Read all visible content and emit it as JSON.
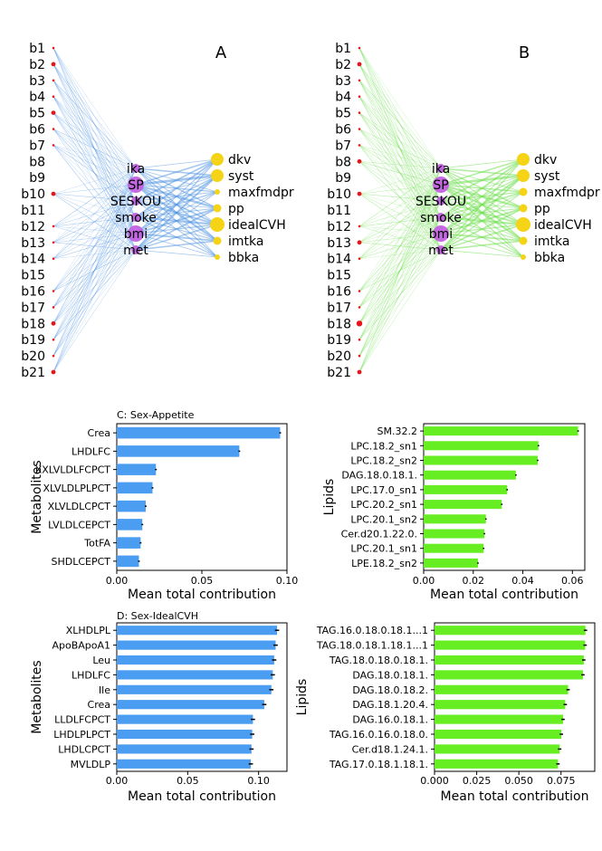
{
  "panels": {
    "A": {
      "letter": "A",
      "edge_color": "#4a90e2",
      "left_nodes": [
        {
          "label": "b1",
          "size": 1
        },
        {
          "label": "b2",
          "size": 2
        },
        {
          "label": "b3",
          "size": 1
        },
        {
          "label": "b4",
          "size": 1
        },
        {
          "label": "b5",
          "size": 2
        },
        {
          "label": "b6",
          "size": 1
        },
        {
          "label": "b7",
          "size": 1
        },
        {
          "label": "b8",
          "size": 0
        },
        {
          "label": "b9",
          "size": 0
        },
        {
          "label": "b10",
          "size": 2
        },
        {
          "label": "b11",
          "size": 0
        },
        {
          "label": "b12",
          "size": 1
        },
        {
          "label": "b13",
          "size": 1
        },
        {
          "label": "b14",
          "size": 1
        },
        {
          "label": "b15",
          "size": 0
        },
        {
          "label": "b16",
          "size": 1
        },
        {
          "label": "b17",
          "size": 1
        },
        {
          "label": "b18",
          "size": 2
        },
        {
          "label": "b19",
          "size": 1
        },
        {
          "label": "b20",
          "size": 1
        },
        {
          "label": "b21",
          "size": 2
        }
      ],
      "mid_nodes": [
        {
          "label": "ika",
          "size": 1
        },
        {
          "label": "SP",
          "size": 3
        },
        {
          "label": "SESKOU",
          "size": 1
        },
        {
          "label": "smoke",
          "size": 1
        },
        {
          "label": "bmi",
          "size": 3
        },
        {
          "label": "met",
          "size": 1
        }
      ],
      "right_nodes": [
        {
          "label": "dkv",
          "size": 3
        },
        {
          "label": "syst",
          "size": 3
        },
        {
          "label": "maxfmdpr",
          "size": 1
        },
        {
          "label": "pp",
          "size": 2
        },
        {
          "label": "idealCVH",
          "size": 4
        },
        {
          "label": "imtka",
          "size": 2
        },
        {
          "label": "bbka",
          "size": 1
        }
      ]
    },
    "B": {
      "letter": "B",
      "edge_color": "#66dd44",
      "left_nodes": [
        {
          "label": "b1",
          "size": 1
        },
        {
          "label": "b2",
          "size": 2
        },
        {
          "label": "b3",
          "size": 1
        },
        {
          "label": "b4",
          "size": 1
        },
        {
          "label": "b5",
          "size": 1
        },
        {
          "label": "b6",
          "size": 1
        },
        {
          "label": "b7",
          "size": 1
        },
        {
          "label": "b8",
          "size": 2
        },
        {
          "label": "b9",
          "size": 0
        },
        {
          "label": "b10",
          "size": 2
        },
        {
          "label": "b11",
          "size": 0
        },
        {
          "label": "b12",
          "size": 1
        },
        {
          "label": "b13",
          "size": 2
        },
        {
          "label": "b14",
          "size": 1
        },
        {
          "label": "b15",
          "size": 0
        },
        {
          "label": "b16",
          "size": 1
        },
        {
          "label": "b17",
          "size": 1
        },
        {
          "label": "b18",
          "size": 3
        },
        {
          "label": "b19",
          "size": 1
        },
        {
          "label": "b20",
          "size": 1
        },
        {
          "label": "b21",
          "size": 2
        }
      ],
      "mid_nodes": [
        {
          "label": "ika",
          "size": 1
        },
        {
          "label": "SP",
          "size": 3
        },
        {
          "label": "SESKOU",
          "size": 1
        },
        {
          "label": "smoke",
          "size": 1
        },
        {
          "label": "bmi",
          "size": 3
        },
        {
          "label": "met",
          "size": 1
        }
      ],
      "right_nodes": [
        {
          "label": "dkv",
          "size": 3
        },
        {
          "label": "syst",
          "size": 3
        },
        {
          "label": "maxfmdpr",
          "size": 2
        },
        {
          "label": "pp",
          "size": 2
        },
        {
          "label": "idealCVH",
          "size": 4
        },
        {
          "label": "imtka",
          "size": 2
        },
        {
          "label": "bbka",
          "size": 1
        }
      ]
    }
  },
  "colors": {
    "left_node": "#e8141a",
    "mid_node": "#c261e0",
    "right_node": "#f5d316",
    "bar_blue": "#4a9df0",
    "bar_green": "#66ee22"
  },
  "chart_data": [
    {
      "id": "C-left",
      "type": "bar",
      "orientation": "horizontal",
      "title": "C: Sex-Appetite",
      "ylabel": "Metabolites",
      "xlabel": "Mean total contribution",
      "xlim": [
        0.0,
        0.1
      ],
      "xticks": [
        0.0,
        0.05,
        0.1
      ],
      "xtick_labels": [
        "0.00",
        "0.05",
        "0.10"
      ],
      "color": "#4a9df0",
      "categories": [
        "Crea",
        "LHDLFC",
        "XXLVLDLFCPCT",
        "XLVLDLPLPCT",
        "XLVLDLCPCT",
        "LVLDLCEPCT",
        "TotFA",
        "SHDLCEPCT"
      ],
      "values": [
        0.096,
        0.072,
        0.023,
        0.021,
        0.017,
        0.015,
        0.014,
        0.013
      ],
      "errors": [
        0.0005,
        0.0005,
        0.0005,
        0.0005,
        0.0005,
        0.0005,
        0.0005,
        0.0005
      ]
    },
    {
      "id": "C-right",
      "type": "bar",
      "orientation": "horizontal",
      "title": "",
      "ylabel": "Lipids",
      "xlabel": "Mean total contribution",
      "xlim": [
        0.0,
        0.065
      ],
      "xticks": [
        0.0,
        0.02,
        0.04,
        0.06
      ],
      "xtick_labels": [
        "0.00",
        "0.02",
        "0.04",
        "0.06"
      ],
      "color": "#66ee22",
      "categories": [
        "SM.32.2",
        "LPC.18.2_sn1",
        "LPC.18.2_sn2",
        "DAG.18.0.18.1.",
        "LPC.17.0_sn1",
        "LPC.20.2_sn1",
        "LPC.20.1_sn2",
        "Cer.d20.1.22.0.",
        "LPC.20.1_sn1",
        "LPE.18.2_sn2"
      ],
      "values": [
        0.0623,
        0.0463,
        0.046,
        0.0372,
        0.0337,
        0.0315,
        0.0251,
        0.0245,
        0.0242,
        0.0219
      ],
      "errors": [
        0.0003,
        0.0003,
        0.0003,
        0.0003,
        0.0003,
        0.0003,
        0.0003,
        0.0003,
        0.0003,
        0.0003
      ]
    },
    {
      "id": "D-left",
      "type": "bar",
      "orientation": "horizontal",
      "title": "D: Sex-IdealCVH",
      "ylabel": "Metabolites",
      "xlabel": "Mean total contribution",
      "xlim": [
        0.0,
        0.12
      ],
      "xticks": [
        0.0,
        0.05,
        0.1
      ],
      "xtick_labels": [
        "0.00",
        "0.05",
        "0.10"
      ],
      "color": "#4a9df0",
      "categories": [
        "XLHDLPL",
        "ApoBApoA1",
        "Leu",
        "LHDLFC",
        "Ile",
        "Crea",
        "LLDLFCPCT",
        "LHDLPLPCT",
        "LHDLCPCT",
        "MVLDLP"
      ],
      "values": [
        0.113,
        0.112,
        0.111,
        0.11,
        0.109,
        0.104,
        0.096,
        0.0955,
        0.095,
        0.0945
      ],
      "errors": [
        0.0015,
        0.0015,
        0.0015,
        0.0015,
        0.0015,
        0.0015,
        0.0015,
        0.0015,
        0.0015,
        0.0015
      ]
    },
    {
      "id": "D-right",
      "type": "bar",
      "orientation": "horizontal",
      "title": "",
      "ylabel": "Lipids",
      "xlabel": "Mean total contribution",
      "xlim": [
        0.0,
        0.095
      ],
      "xticks": [
        0.0,
        0.025,
        0.05,
        0.075
      ],
      "xtick_labels": [
        "0.000",
        "0.025",
        "0.050",
        "0.075"
      ],
      "color": "#66ee22",
      "categories": [
        "TAG.16.0.18.0.18.1...1",
        "TAG.18.0.18.1.18.1...1",
        "TAG.18.0.18.0.18.1.",
        "DAG.18.0.18.1.",
        "DAG.18.0.18.2.",
        "DAG.18.1.20.4.",
        "DAG.16.0.18.1.",
        "TAG.16.0.16.0.18.0.",
        "Cer.d18.1.24.1.",
        "TAG.17.0.18.1.18.1."
      ],
      "values": [
        0.0895,
        0.0893,
        0.0885,
        0.088,
        0.0792,
        0.0775,
        0.0762,
        0.0752,
        0.0742,
        0.0732
      ],
      "errors": [
        0.001,
        0.001,
        0.001,
        0.001,
        0.001,
        0.001,
        0.001,
        0.001,
        0.001,
        0.001
      ]
    }
  ]
}
